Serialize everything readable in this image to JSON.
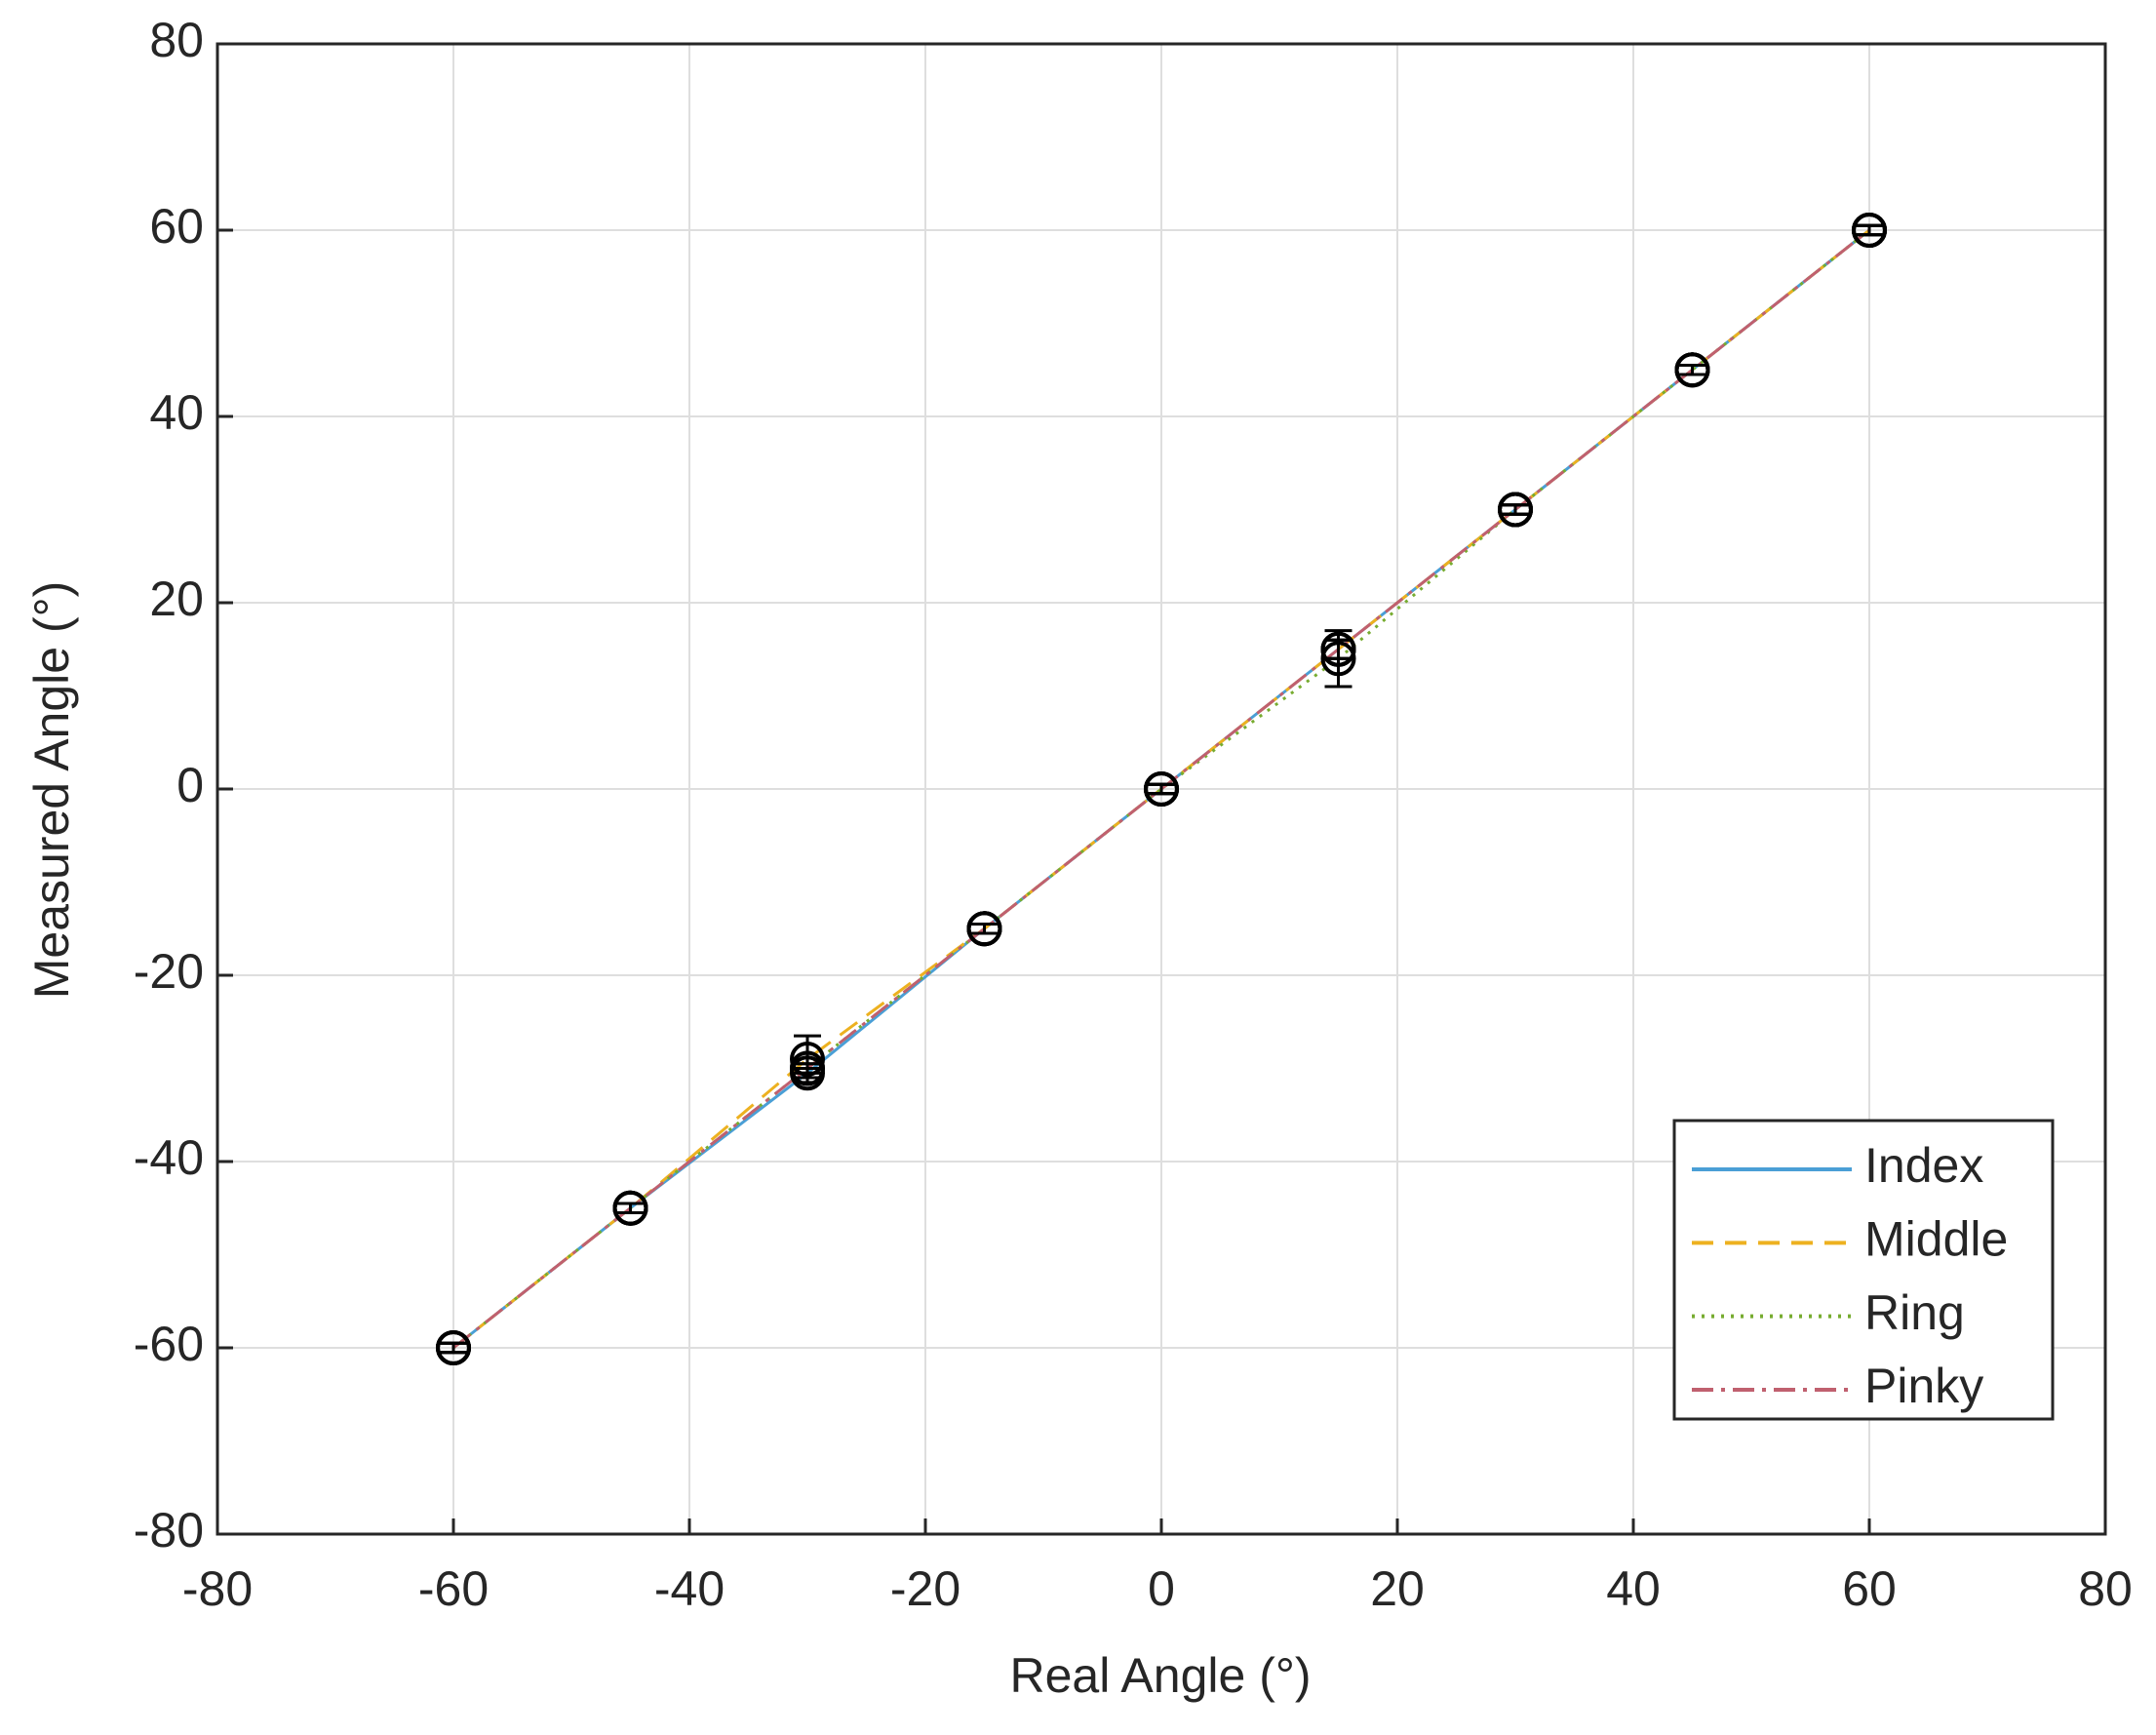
{
  "chart_data": {
    "type": "line",
    "x_label": "Real Angle (°)",
    "y_label": "Measured Angle (°)",
    "x": [
      -60,
      -45,
      -30,
      -15,
      0,
      15,
      30,
      45,
      60
    ],
    "series": [
      {
        "name": "Index",
        "color": "#4a9fd6",
        "dash": "solid",
        "values": [
          -60,
          -45,
          -30.5,
          -15,
          0,
          15,
          30,
          45,
          60
        ],
        "errors": [
          0.5,
          0.5,
          0.5,
          0.5,
          0.5,
          1,
          0.5,
          0.5,
          0.5
        ]
      },
      {
        "name": "Middle",
        "color": "#edb120",
        "dash": "dashed",
        "values": [
          -60,
          -45,
          -29,
          -15,
          0,
          15,
          30,
          45,
          60
        ],
        "errors": [
          0.5,
          0.5,
          2.5,
          0.5,
          0.5,
          1,
          0.5,
          0.5,
          0.5
        ]
      },
      {
        "name": "Ring",
        "color": "#77ac30",
        "dash": "dotted",
        "values": [
          -60,
          -45,
          -30,
          -15,
          0,
          14,
          30,
          45,
          60
        ],
        "errors": [
          0.5,
          0.5,
          0.5,
          0.5,
          0.5,
          3,
          0.5,
          0.5,
          0.5
        ]
      },
      {
        "name": "Pinky",
        "color": "#c0606f",
        "dash": "dashdot",
        "values": [
          -60,
          -45,
          -30,
          -15,
          0,
          15,
          30,
          45,
          60
        ],
        "errors": [
          0.5,
          0.5,
          0.5,
          0.5,
          0.5,
          1,
          0.5,
          0.5,
          0.5
        ]
      }
    ],
    "marker_color": "#000000",
    "xlim": [
      -80,
      80
    ],
    "xticks": [
      -80,
      -60,
      -40,
      -20,
      0,
      20,
      40,
      60,
      80
    ],
    "ylim": [
      -80,
      80
    ],
    "yticks": [
      -80,
      -60,
      -40,
      -20,
      0,
      20,
      40,
      60,
      80
    ],
    "grid": true,
    "legend": "lower right"
  }
}
